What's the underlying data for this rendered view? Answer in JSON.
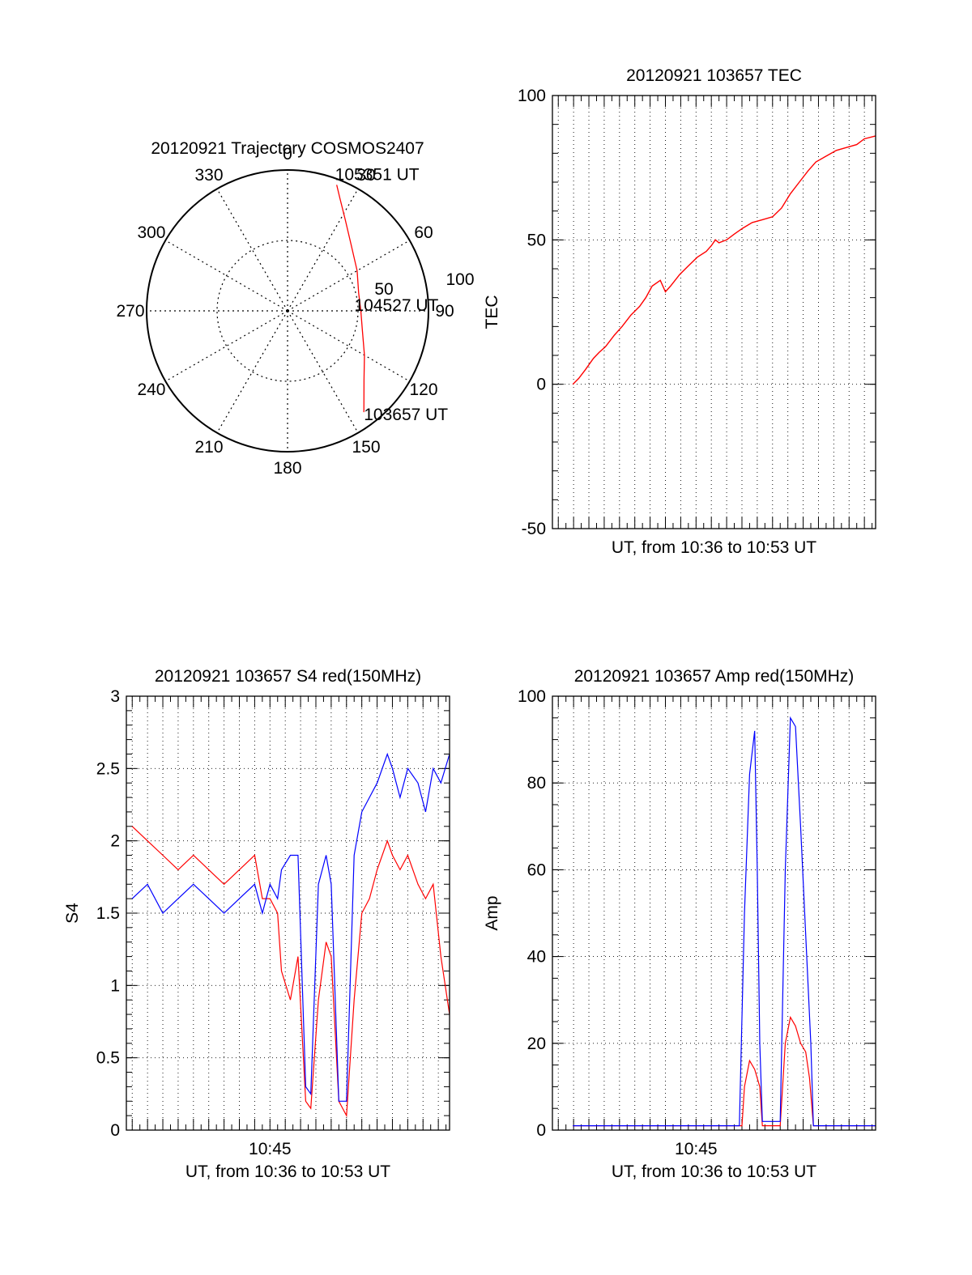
{
  "chart_data": [
    {
      "type": "polar",
      "title": "20120921 Trajectory COSMOS2407",
      "angle_labels": [
        "0",
        "30",
        "60",
        "90",
        "120",
        "150",
        "180",
        "210",
        "240",
        "270",
        "300",
        "330"
      ],
      "radius_labels": [
        "50",
        "100"
      ],
      "series": [
        {
          "color": "#ff0000",
          "points": [
            {
              "az": 21.3,
              "r": 96
            },
            {
              "az": 25,
              "r": 88
            },
            {
              "az": 32,
              "r": 77
            },
            {
              "az": 44,
              "r": 65
            },
            {
              "az": 60,
              "r": 57
            },
            {
              "az": 76,
              "r": 52
            },
            {
              "az": 90,
              "r": 52
            },
            {
              "az": 105,
              "r": 55
            },
            {
              "az": 120,
              "r": 63
            },
            {
              "az": 132,
              "r": 73
            },
            {
              "az": 143,
              "r": 90
            }
          ]
        }
      ],
      "annotations": [
        {
          "text": "105351 UT",
          "az": 21.3,
          "r": 96
        },
        {
          "text": "104527 UT",
          "az": 90,
          "r": 52
        },
        {
          "text": "103657 UT",
          "az": 143,
          "r": 90
        }
      ]
    },
    {
      "type": "line",
      "title": "20120921 103657 TEC",
      "xlabel": "UT, from 10:36 to 10:53 UT",
      "ylabel": "TEC",
      "xlim": [
        "10:35:37",
        "10:56:44"
      ],
      "ylim": [
        -50,
        100
      ],
      "yticks": [
        "-50",
        "0",
        "50",
        "100"
      ],
      "grid": true,
      "series": [
        {
          "color": "#ff0000",
          "x": [
            "10:36:57",
            "10:37:20",
            "10:37:46",
            "10:38:18",
            "10:38:40",
            "10:39:05",
            "10:39:40",
            "10:40:10",
            "10:40:45",
            "10:41:19",
            "10:41:43",
            "10:42:08",
            "10:42:40",
            "10:43:00",
            "10:43:20",
            "10:43:56",
            "10:44:30",
            "10:45:05",
            "10:45:40",
            "10:46:00",
            "10:46:16",
            "10:46:30",
            "10:47:00",
            "10:47:30",
            "10:48:02",
            "10:48:40",
            "10:49:20",
            "10:50:00",
            "10:50:35",
            "10:51:10",
            "10:51:45",
            "10:52:20",
            "10:52:50",
            "10:53:30",
            "10:54:10",
            "10:54:50",
            "10:55:30",
            "10:56:00",
            "10:56:44"
          ],
          "y": [
            0,
            2,
            5,
            9,
            11,
            13,
            17,
            20,
            24,
            27,
            30,
            34,
            36,
            32,
            34,
            38,
            41,
            44,
            46,
            48,
            50,
            49,
            50,
            52,
            54,
            56,
            57,
            58,
            61,
            66,
            70,
            74,
            77,
            79,
            81,
            82,
            83,
            85,
            86
          ]
        }
      ]
    },
    {
      "type": "line",
      "title": "20120921 103657 S4 red(150MHz)",
      "xlabel": "UT, from 10:36 to 10:53 UT",
      "ylabel": "S4",
      "xlim": [
        "10:35:37",
        "10:56:44"
      ],
      "ylim": [
        0,
        3
      ],
      "xticks": [
        "10:45"
      ],
      "yticks": [
        "0",
        "0.5",
        "1",
        "1.5",
        "2",
        "2.5",
        "3"
      ],
      "grid": true,
      "series": [
        {
          "color": "#ff0000",
          "x": [
            "10:36:00",
            "10:37:00",
            "10:38:00",
            "10:39:00",
            "10:40:00",
            "10:41:00",
            "10:42:00",
            "10:43:00",
            "10:44:00",
            "10:44:30",
            "10:45:00",
            "10:45:30",
            "10:45:45",
            "10:46:20",
            "10:46:50",
            "10:47:20",
            "10:47:40",
            "10:48:10",
            "10:48:40",
            "10:49:00",
            "10:49:30",
            "10:50:00",
            "10:50:30",
            "10:51:00",
            "10:51:30",
            "10:52:00",
            "10:52:40",
            "10:53:00",
            "10:53:30",
            "10:54:00",
            "10:54:40",
            "10:55:10",
            "10:55:40",
            "10:56:10",
            "10:56:44"
          ],
          "y": [
            2.1,
            2.0,
            1.9,
            1.8,
            1.9,
            1.8,
            1.7,
            1.8,
            1.9,
            1.6,
            1.6,
            1.5,
            1.1,
            0.9,
            1.2,
            0.2,
            0.15,
            0.9,
            1.3,
            1.2,
            0.2,
            0.1,
            0.9,
            1.5,
            1.6,
            1.8,
            2.0,
            1.9,
            1.8,
            1.9,
            1.7,
            1.6,
            1.7,
            1.2,
            0.8
          ]
        },
        {
          "color": "#0000ff",
          "x": [
            "10:36:00",
            "10:37:00",
            "10:38:00",
            "10:39:00",
            "10:40:00",
            "10:41:00",
            "10:42:00",
            "10:43:00",
            "10:44:00",
            "10:44:30",
            "10:45:00",
            "10:45:30",
            "10:45:45",
            "10:46:20",
            "10:46:50",
            "10:47:20",
            "10:47:40",
            "10:48:10",
            "10:48:40",
            "10:49:00",
            "10:49:30",
            "10:50:00",
            "10:50:30",
            "10:51:00",
            "10:51:30",
            "10:52:00",
            "10:52:40",
            "10:53:00",
            "10:53:30",
            "10:54:00",
            "10:54:40",
            "10:55:10",
            "10:55:40",
            "10:56:10",
            "10:56:44"
          ],
          "y": [
            1.6,
            1.7,
            1.5,
            1.6,
            1.7,
            1.6,
            1.5,
            1.6,
            1.7,
            1.5,
            1.7,
            1.6,
            1.8,
            1.9,
            1.9,
            0.3,
            0.25,
            1.7,
            1.9,
            1.7,
            0.2,
            0.2,
            1.9,
            2.2,
            2.3,
            2.4,
            2.6,
            2.5,
            2.3,
            2.5,
            2.4,
            2.2,
            2.5,
            2.4,
            2.6
          ]
        }
      ]
    },
    {
      "type": "line",
      "title": "20120921 103657 Amp red(150MHz)",
      "xlabel": "UT, from 10:36 to 10:53 UT",
      "ylabel": "Amp",
      "xlim": [
        "10:35:37",
        "10:56:44"
      ],
      "ylim": [
        0,
        100
      ],
      "xticks": [
        "10:45"
      ],
      "yticks": [
        "0",
        "20",
        "40",
        "60",
        "80",
        "100"
      ],
      "grid": true,
      "series": [
        {
          "color": "#ff0000",
          "x": [
            "10:36:57",
            "10:42:00",
            "10:48:00",
            "10:48:10",
            "10:48:30",
            "10:48:50",
            "10:49:10",
            "10:49:20",
            "10:49:40",
            "10:50:30",
            "10:50:50",
            "10:51:10",
            "10:51:30",
            "10:51:50",
            "10:52:10",
            "10:52:25",
            "10:52:40",
            "10:56:44"
          ],
          "y": [
            1,
            1,
            1,
            10,
            16,
            14,
            10,
            1,
            1,
            1,
            20,
            26,
            24,
            20,
            18,
            12,
            1,
            1
          ]
        },
        {
          "color": "#0000ff",
          "x": [
            "10:36:57",
            "10:40:00",
            "10:44:00",
            "10:47:50",
            "10:48:10",
            "10:48:30",
            "10:48:50",
            "10:49:00",
            "10:49:10",
            "10:49:20",
            "10:49:40",
            "10:50:30",
            "10:50:50",
            "10:51:10",
            "10:51:30",
            "10:51:50",
            "10:52:10",
            "10:52:30",
            "10:52:40",
            "10:56:44"
          ],
          "y": [
            1,
            1,
            1,
            1,
            50,
            82,
            92,
            60,
            20,
            2,
            2,
            2,
            60,
            95,
            93,
            70,
            45,
            20,
            1,
            1
          ]
        }
      ]
    }
  ]
}
